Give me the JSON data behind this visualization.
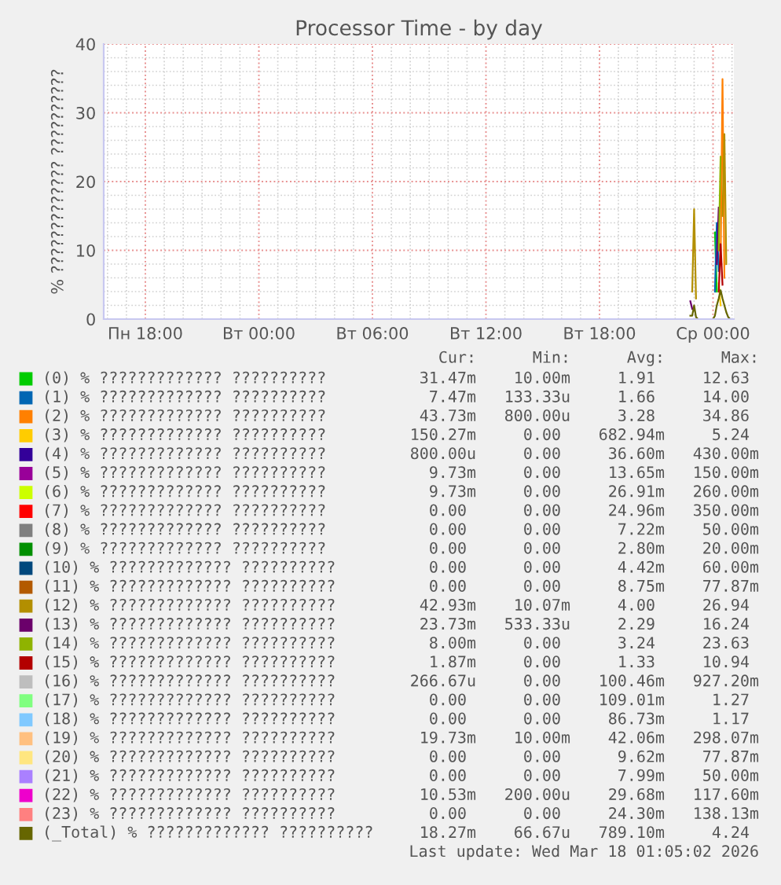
{
  "chart_data": {
    "type": "line",
    "title": "Processor Time - by day",
    "ylabel": "% ????????????? ??????????",
    "x": [
      "2026-03-17T22:48",
      "2026-03-17T22:54",
      "2026-03-17T23:00",
      "2026-03-17T23:06",
      "2026-03-17T23:12",
      "2026-03-17T23:30",
      "2026-03-17T23:48",
      "2026-03-18T00:00",
      "2026-03-18T00:06",
      "2026-03-18T00:12",
      "2026-03-18T00:18",
      "2026-03-18T00:24",
      "2026-03-18T00:30",
      "2026-03-18T00:36",
      "2026-03-18T00:42",
      "2026-03-18T00:48",
      "2026-03-18T00:54"
    ],
    "xlim": [
      "2026-03-16T15:48",
      "2026-03-18T01:06"
    ],
    "xticks": [
      {
        "value": "2026-03-16T18:00",
        "label": "Пн 18:00"
      },
      {
        "value": "2026-03-17T00:00",
        "label": "Вт 00:00"
      },
      {
        "value": "2026-03-17T06:00",
        "label": "Вт 06:00"
      },
      {
        "value": "2026-03-17T12:00",
        "label": "Вт 12:00"
      },
      {
        "value": "2026-03-17T18:00",
        "label": "Вт 18:00"
      },
      {
        "value": "2026-03-18T00:00",
        "label": "Ср 00:00"
      }
    ],
    "ylim": [
      0,
      40
    ],
    "yticks": [
      0,
      10,
      20,
      30,
      40
    ],
    "grid": true,
    "legend": "bottom",
    "series": [
      {
        "name": "(0) % ????????????? ??????????",
        "color": "#00cc00",
        "values": [
          null,
          null,
          null,
          null,
          null,
          null,
          null,
          null,
          12.6,
          4,
          null,
          null,
          null,
          null,
          null,
          null,
          null
        ]
      },
      {
        "name": "(1) % ????????????? ??????????",
        "color": "#0066b3",
        "values": [
          null,
          null,
          null,
          null,
          null,
          null,
          null,
          null,
          4,
          14,
          7,
          null,
          null,
          null,
          null,
          null,
          null
        ]
      },
      {
        "name": "(2) % ????????????? ??????????",
        "color": "#ff8000",
        "values": [
          null,
          null,
          null,
          null,
          null,
          null,
          null,
          null,
          null,
          null,
          null,
          8,
          34.9,
          6,
          null,
          null,
          null
        ]
      },
      {
        "name": "(3) % ????????????? ??????????",
        "color": "#ffcc00",
        "values": [
          null,
          null,
          null,
          null,
          null,
          null,
          null,
          null,
          null,
          null,
          5.2,
          2,
          null,
          null,
          null,
          null,
          null
        ]
      },
      {
        "name": "(4) % ????????????? ??????????",
        "color": "#330099",
        "values": [
          null,
          null,
          null,
          null,
          null,
          null,
          null,
          null,
          null,
          null,
          null,
          null,
          null,
          null,
          null,
          null,
          null
        ]
      },
      {
        "name": "(5) % ????????????? ??????????",
        "color": "#990099",
        "values": [
          null,
          null,
          null,
          null,
          null,
          null,
          null,
          null,
          null,
          null,
          null,
          null,
          null,
          null,
          null,
          null,
          null
        ]
      },
      {
        "name": "(6) % ????????????? ??????????",
        "color": "#ccff00",
        "values": [
          null,
          null,
          null,
          null,
          null,
          null,
          null,
          null,
          null,
          null,
          null,
          null,
          null,
          null,
          null,
          null,
          null
        ]
      },
      {
        "name": "(7) % ????????????? ??????????",
        "color": "#ff0000",
        "values": [
          null,
          null,
          null,
          null,
          null,
          null,
          null,
          null,
          null,
          null,
          null,
          null,
          null,
          null,
          null,
          null,
          null
        ]
      },
      {
        "name": "(8) % ????????????? ??????????",
        "color": "#808080",
        "values": [
          null,
          null,
          null,
          null,
          null,
          null,
          null,
          null,
          null,
          null,
          null,
          null,
          null,
          null,
          null,
          null,
          null
        ]
      },
      {
        "name": "(9) % ????????????? ??????????",
        "color": "#008f00",
        "values": [
          null,
          null,
          null,
          null,
          null,
          null,
          null,
          null,
          null,
          null,
          null,
          null,
          null,
          null,
          null,
          null,
          null
        ]
      },
      {
        "name": "(10) % ????????????? ??????????",
        "color": "#00487d",
        "values": [
          null,
          null,
          null,
          null,
          null,
          null,
          null,
          null,
          null,
          null,
          null,
          null,
          null,
          null,
          null,
          null,
          null
        ]
      },
      {
        "name": "(11) % ????????????? ??????????",
        "color": "#b35a00",
        "values": [
          null,
          null,
          null,
          null,
          null,
          null,
          null,
          null,
          null,
          null,
          null,
          null,
          null,
          null,
          null,
          null,
          null
        ]
      },
      {
        "name": "(12) % ????????????? ??????????",
        "color": "#b38f00",
        "values": [
          null,
          4,
          16,
          3,
          null,
          null,
          null,
          null,
          null,
          null,
          null,
          null,
          15,
          26.9,
          8,
          null,
          null
        ]
      },
      {
        "name": "(13) % ????????????? ??????????",
        "color": "#6b006b",
        "values": [
          2.6,
          1.5,
          null,
          null,
          null,
          null,
          null,
          null,
          null,
          8,
          16.2,
          null,
          null,
          null,
          null,
          null,
          null
        ]
      },
      {
        "name": "(14) % ????????????? ??????????",
        "color": "#8fb300",
        "values": [
          null,
          null,
          null,
          null,
          null,
          null,
          null,
          null,
          null,
          null,
          10,
          23.6,
          null,
          null,
          null,
          null,
          null
        ]
      },
      {
        "name": "(15) % ????????????? ??????????",
        "color": "#b30000",
        "values": [
          null,
          null,
          null,
          null,
          null,
          null,
          null,
          null,
          null,
          null,
          4,
          10.9,
          5,
          null,
          null,
          null,
          null
        ]
      },
      {
        "name": "(16) % ????????????? ??????????",
        "color": "#bebebe",
        "values": [
          null,
          null,
          null,
          null,
          null,
          null,
          null,
          null,
          null,
          null,
          null,
          null,
          null,
          null,
          null,
          null,
          null
        ]
      },
      {
        "name": "(17) % ????????????? ??????????",
        "color": "#80ff80",
        "values": [
          null,
          null,
          null,
          null,
          null,
          null,
          null,
          null,
          null,
          null,
          null,
          null,
          null,
          null,
          null,
          null,
          null
        ]
      },
      {
        "name": "(18) % ????????????? ??????????",
        "color": "#80c9ff",
        "values": [
          null,
          null,
          null,
          null,
          null,
          null,
          null,
          null,
          null,
          null,
          null,
          null,
          null,
          null,
          null,
          null,
          null
        ]
      },
      {
        "name": "(19) % ????????????? ??????????",
        "color": "#ffc080",
        "values": [
          null,
          null,
          null,
          null,
          null,
          null,
          null,
          null,
          null,
          null,
          null,
          null,
          null,
          null,
          null,
          null,
          null
        ]
      },
      {
        "name": "(20) % ????????????? ??????????",
        "color": "#ffe680",
        "values": [
          null,
          null,
          null,
          null,
          null,
          null,
          null,
          null,
          null,
          null,
          null,
          null,
          null,
          null,
          null,
          null,
          null
        ]
      },
      {
        "name": "(21) % ????????????? ??????????",
        "color": "#aa80ff",
        "values": [
          null,
          null,
          null,
          null,
          null,
          null,
          null,
          null,
          null,
          null,
          null,
          null,
          null,
          null,
          null,
          null,
          null
        ]
      },
      {
        "name": "(22) % ????????????? ??????????",
        "color": "#ee00cc",
        "values": [
          null,
          null,
          null,
          null,
          null,
          null,
          null,
          null,
          null,
          null,
          null,
          null,
          null,
          null,
          null,
          null,
          null
        ]
      },
      {
        "name": "(23) % ????????????? ??????????",
        "color": "#ff8080",
        "values": [
          null,
          null,
          null,
          null,
          null,
          null,
          null,
          null,
          null,
          null,
          null,
          null,
          null,
          null,
          null,
          null,
          null
        ]
      },
      {
        "name": "(_Total) % ????????????? ??????????",
        "color": "#666600",
        "values": [
          0.5,
          0.5,
          2,
          0.3,
          0,
          0,
          0,
          0,
          0.5,
          2,
          3,
          4.2,
          3,
          2,
          1,
          0.3,
          0
        ]
      }
    ],
    "annotations": [
      "Cur: Min: Avg: Max:",
      "31.47m 10.00m 1.91 12.63",
      "7.47m 133.33u 1.66 14.00",
      "43.73m 800.00u 3.28 34.86",
      "150.27m 0.00 682.94m 5.24",
      "800.00u 0.00 36.60m 430.00m",
      "9.73m 0.00 13.65m 150.00m",
      "9.73m 0.00 26.91m 260.00m",
      "0.00 0.00 24.96m 350.00m",
      "0.00 0.00 7.22m 50.00m",
      "0.00 0.00 2.80m 20.00m",
      "0.00 0.00 4.42m 60.00m",
      "0.00 0.00 8.75m 77.87m",
      "42.93m 10.07m 4.00 26.94",
      "23.73m 533.33u 2.29 16.24",
      "8.00m 0.00 3.24 23.63",
      "1.87m 0.00 1.33 10.94",
      "266.67u 0.00 100.46m 927.20m",
      "0.00 0.00 109.01m 1.27",
      "0.00 0.00 86.73m 1.17",
      "19.73m 10.00m 42.06m 298.07m",
      "0.00 0.00 9.62m 77.87m",
      "0.00 0.00 7.99m 50.00m",
      "10.53m 200.00u 29.68m 117.60m",
      "0.00 0.00 24.30m 138.13m",
      "18.27m 66.67u 789.10m 4.24",
      "Last update: Wed Mar 18 01:05:02 2026"
    ]
  }
}
